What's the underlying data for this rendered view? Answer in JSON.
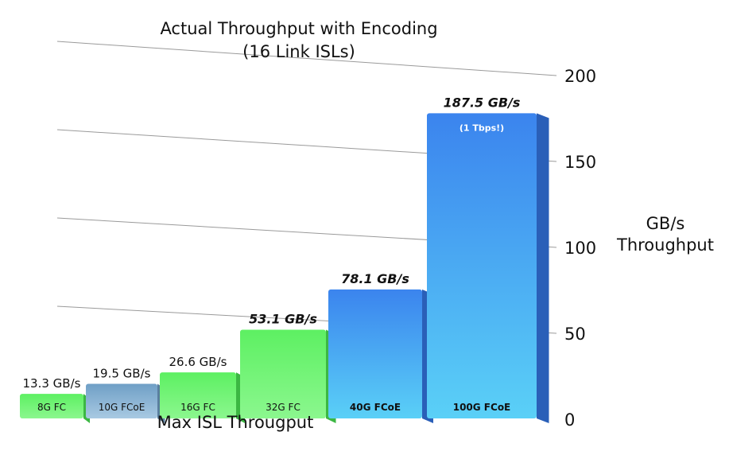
{
  "chart_data": {
    "type": "bar",
    "title": "Actual Throughput with Encoding",
    "subtitle": "(16 Link ISLs)",
    "xlabel": "Max ISL Througput",
    "ylabel": [
      "GB/s",
      "Throughput"
    ],
    "ylim": [
      0,
      200
    ],
    "yticks": [
      "0",
      "50",
      "100",
      "150",
      "200"
    ],
    "grid": true,
    "categories": [
      "8G FC",
      "10G FCoE",
      "16G FC",
      "32G FC",
      "40G FCoE",
      "100G FCoE"
    ],
    "values": [
      13.3,
      19.5,
      26.6,
      53.1,
      78.1,
      187.5
    ],
    "data_labels": [
      "13.3 GB/s",
      "19.5 GB/s",
      "26.6 GB/s",
      "53.1 GB/s",
      "78.1 GB/s",
      "187.5 GB/s"
    ],
    "annotation": "(1 Tbps!)",
    "colors": [
      "#56e65e",
      "#7aa6c9",
      "#56e65e",
      "#56e65e",
      "#3f8ff0",
      "#3f8ff0"
    ]
  }
}
